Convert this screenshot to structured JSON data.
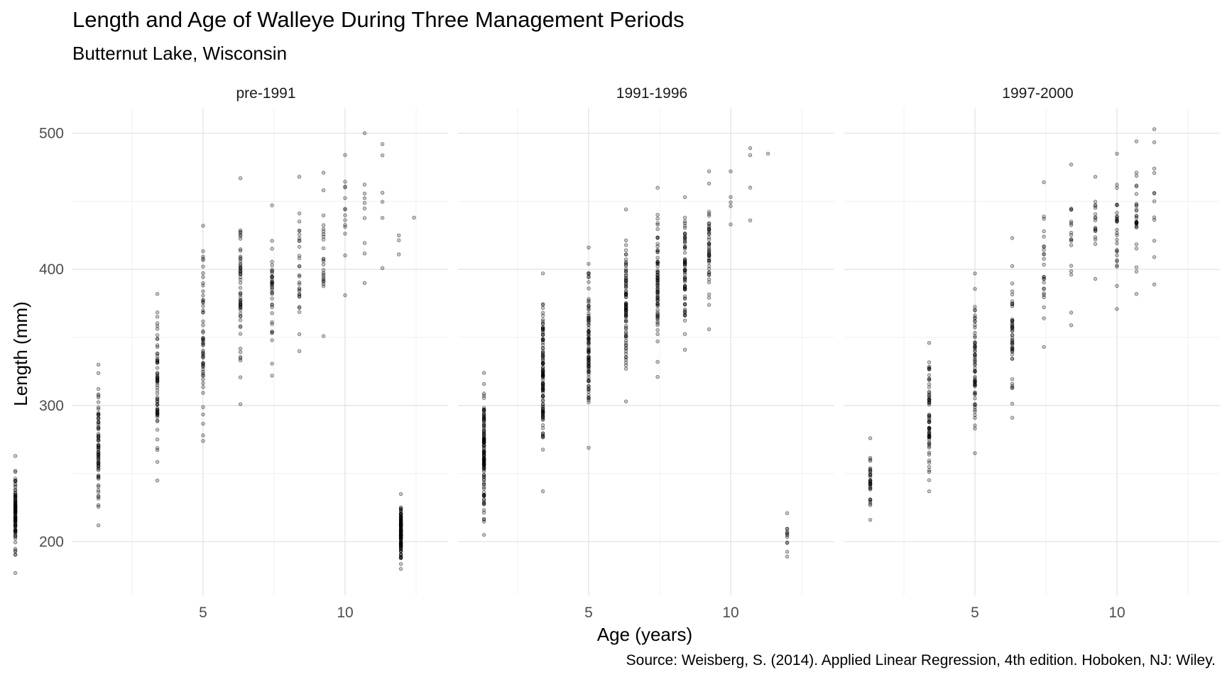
{
  "title": "Length and Age of Walleye During Three Management Periods",
  "subtitle": "Butternut Lake, Wisconsin",
  "caption": "Source: Weisberg, S. (2014). Applied Linear Regression, 4th edition. Hoboken, NJ: Wiley.",
  "chart_data": {
    "type": "scatter",
    "xlabel": "Age (years)",
    "ylabel": "Length (mm)",
    "x_scale": "log",
    "x_ticks": [
      5,
      10
    ],
    "y_ticks": [
      200,
      300,
      400,
      500
    ],
    "ylim": [
      160,
      515
    ],
    "grid": true,
    "point_color": "#000000",
    "point_alpha": 0.35,
    "facets": [
      {
        "label": "pre-1991",
        "groups": [
          {
            "age": 2,
            "n": 110,
            "min": 177,
            "max": 263
          },
          {
            "age": 3,
            "n": 80,
            "min": 212,
            "max": 330
          },
          {
            "age": 4,
            "n": 70,
            "min": 245,
            "max": 382
          },
          {
            "age": 5,
            "n": 60,
            "min": 274,
            "max": 432
          },
          {
            "age": 6,
            "n": 60,
            "min": 301,
            "max": 467
          },
          {
            "age": 7,
            "n": 40,
            "min": 322,
            "max": 447
          },
          {
            "age": 8,
            "n": 30,
            "min": 340,
            "max": 468
          },
          {
            "age": 9,
            "n": 25,
            "min": 351,
            "max": 471
          },
          {
            "age": 10,
            "n": 14,
            "min": 381,
            "max": 484
          },
          {
            "age": 11,
            "n": 10,
            "min": 390,
            "max": 500
          },
          {
            "age": 12,
            "n": 6,
            "min": 401,
            "max": 492
          },
          {
            "age": 13,
            "n": 3,
            "min": 411,
            "max": 425
          },
          {
            "age": 14,
            "n": 1,
            "min": 438,
            "max": 438
          }
        ]
      },
      {
        "label": "1991-1996",
        "groups": [
          {
            "age": 2,
            "n": 130,
            "min": 180,
            "max": 235
          },
          {
            "age": 3,
            "n": 130,
            "min": 205,
            "max": 324
          },
          {
            "age": 4,
            "n": 120,
            "min": 237,
            "max": 397
          },
          {
            "age": 5,
            "n": 100,
            "min": 269,
            "max": 416
          },
          {
            "age": 6,
            "n": 90,
            "min": 303,
            "max": 444
          },
          {
            "age": 7,
            "n": 80,
            "min": 321,
            "max": 460
          },
          {
            "age": 8,
            "n": 70,
            "min": 341,
            "max": 453
          },
          {
            "age": 9,
            "n": 50,
            "min": 356,
            "max": 472
          },
          {
            "age": 10,
            "n": 5,
            "min": 433,
            "max": 472
          },
          {
            "age": 11,
            "n": 4,
            "min": 436,
            "max": 489
          },
          {
            "age": 12,
            "n": 1,
            "min": 485,
            "max": 485
          }
        ]
      },
      {
        "label": "1997-2000",
        "groups": [
          {
            "age": 2,
            "n": 12,
            "min": 189,
            "max": 221
          },
          {
            "age": 3,
            "n": 35,
            "min": 216,
            "max": 276
          },
          {
            "age": 4,
            "n": 70,
            "min": 237,
            "max": 346
          },
          {
            "age": 5,
            "n": 70,
            "min": 265,
            "max": 397
          },
          {
            "age": 6,
            "n": 50,
            "min": 291,
            "max": 423
          },
          {
            "age": 7,
            "n": 25,
            "min": 343,
            "max": 464
          },
          {
            "age": 8,
            "n": 18,
            "min": 359,
            "max": 477
          },
          {
            "age": 9,
            "n": 18,
            "min": 393,
            "max": 468
          },
          {
            "age": 10,
            "n": 30,
            "min": 371,
            "max": 485
          },
          {
            "age": 11,
            "n": 30,
            "min": 382,
            "max": 494
          },
          {
            "age": 12,
            "n": 12,
            "min": 389,
            "max": 503
          }
        ]
      }
    ]
  }
}
